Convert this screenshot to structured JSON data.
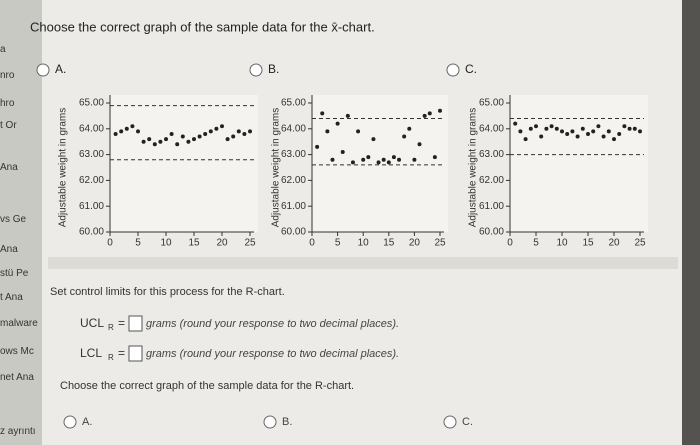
{
  "sidebar": [
    "a",
    "nro",
    "hro",
    "t Or",
    "Ana",
    "vs Ge",
    "Ana",
    "stü Pe",
    "t Ana",
    "malware",
    "ows Mc",
    "net Ana",
    "z ayrıntı"
  ],
  "question": "Choose the correct graph of the sample data for the x̄-chart.",
  "options": [
    {
      "label": "A.",
      "ylabel": "Adjustable weight in grams",
      "yticks": [
        {
          "value": 60,
          "label": "60.00"
        },
        {
          "value": 61,
          "label": "61.00"
        },
        {
          "value": 62,
          "label": "62.00"
        },
        {
          "value": 63,
          "label": "63.00"
        },
        {
          "value": 64,
          "label": "64.00"
        },
        {
          "value": 65,
          "label": "65.00"
        }
      ],
      "xticks": [
        0,
        5,
        10,
        15,
        20,
        25
      ],
      "ylim": [
        60,
        65
      ],
      "xlim": [
        0,
        25
      ],
      "limits": [
        64.9,
        62.8
      ],
      "x": [
        1,
        2,
        3,
        4,
        5,
        6,
        7,
        8,
        9,
        10,
        11,
        12,
        13,
        14,
        15,
        16,
        17,
        18,
        19,
        20,
        21,
        22,
        23,
        24,
        25
      ],
      "values": [
        63.8,
        63.9,
        64.0,
        64.1,
        63.9,
        63.5,
        63.6,
        63.4,
        63.5,
        63.6,
        63.8,
        63.4,
        63.7,
        63.5,
        63.6,
        63.7,
        63.8,
        63.9,
        64.0,
        64.1,
        63.6,
        63.7,
        63.9,
        63.8,
        63.9
      ]
    },
    {
      "label": "B.",
      "ylabel": "Adjustable weight in grams",
      "yticks": [
        {
          "value": 60,
          "label": "60.00"
        },
        {
          "value": 61,
          "label": "61.00"
        },
        {
          "value": 62,
          "label": "62.00"
        },
        {
          "value": 63,
          "label": "63.00"
        },
        {
          "value": 64,
          "label": "64.00"
        },
        {
          "value": 65,
          "label": "65.00"
        }
      ],
      "xticks": [
        0,
        5,
        10,
        15,
        20,
        25
      ],
      "ylim": [
        60,
        65
      ],
      "xlim": [
        0,
        25
      ],
      "limits": [
        64.4,
        62.6
      ],
      "x": [
        1,
        2,
        3,
        4,
        5,
        6,
        7,
        8,
        9,
        10,
        11,
        12,
        13,
        14,
        15,
        16,
        17,
        18,
        19,
        20,
        21,
        22,
        23,
        24,
        25
      ],
      "values": [
        63.3,
        64.6,
        63.9,
        62.8,
        64.2,
        63.1,
        64.5,
        62.7,
        63.9,
        62.8,
        62.9,
        63.6,
        62.7,
        62.8,
        62.7,
        62.9,
        62.8,
        63.7,
        64.0,
        62.8,
        63.4,
        64.5,
        64.6,
        62.9,
        64.7
      ]
    },
    {
      "label": "C.",
      "ylabel": "Adjustable weight in grams",
      "yticks": [
        {
          "value": 60,
          "label": "60.00"
        },
        {
          "value": 61,
          "label": "61.00"
        },
        {
          "value": 62,
          "label": "62.00"
        },
        {
          "value": 63,
          "label": "63.00"
        },
        {
          "value": 64,
          "label": "64.00"
        },
        {
          "value": 65,
          "label": "65.00"
        }
      ],
      "xticks": [
        0,
        5,
        10,
        15,
        20,
        25
      ],
      "ylim": [
        60,
        65
      ],
      "xlim": [
        0,
        25
      ],
      "limits": [
        64.4,
        63.0
      ],
      "x": [
        1,
        2,
        3,
        4,
        5,
        6,
        7,
        8,
        9,
        10,
        11,
        12,
        13,
        14,
        15,
        16,
        17,
        18,
        19,
        20,
        21,
        22,
        23,
        24,
        25
      ],
      "values": [
        64.2,
        63.9,
        63.6,
        64.0,
        64.1,
        63.7,
        64.0,
        64.1,
        64.0,
        63.9,
        63.8,
        63.9,
        63.7,
        64.0,
        63.8,
        63.9,
        64.1,
        63.7,
        63.9,
        63.6,
        63.8,
        64.1,
        64.0,
        64.0,
        63.9
      ]
    }
  ],
  "rchart": {
    "instruction": "Set control limits for this process for the R-chart.",
    "ucl": {
      "name": "UCL",
      "sub": "R",
      "eq": "=",
      "hint": "grams (round your response to two decimal places)."
    },
    "lcl": {
      "name": "LCL",
      "sub": "R",
      "eq": "=",
      "hint": "grams (round your response to two decimal places)."
    },
    "question": "Choose the correct graph of the sample data for the R-chart.",
    "options": [
      "A.",
      "B.",
      "C."
    ]
  }
}
